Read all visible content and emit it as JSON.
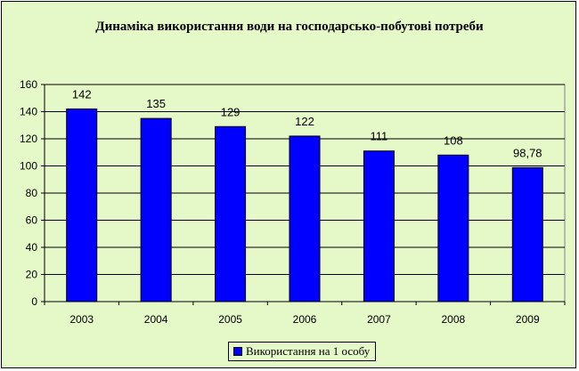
{
  "chart_data": {
    "type": "bar",
    "title": "Динаміка використання води на господарсько-побутові потреби",
    "categories": [
      "2003",
      "2004",
      "2005",
      "2006",
      "2007",
      "2008",
      "2009"
    ],
    "series": [
      {
        "name": "Використання на 1 особу",
        "values": [
          142,
          135,
          129,
          122,
          111,
          108,
          98.78
        ],
        "data_labels": [
          "142",
          "135",
          "129",
          "122",
          "111",
          "108",
          "98,78"
        ],
        "color": "#0000ff"
      }
    ],
    "ylim": [
      0,
      160
    ],
    "yticks": [
      0,
      20,
      40,
      60,
      80,
      100,
      120,
      140,
      160
    ],
    "grid": true,
    "legend_position": "bottom",
    "plot_background": "#e4f8c8"
  }
}
